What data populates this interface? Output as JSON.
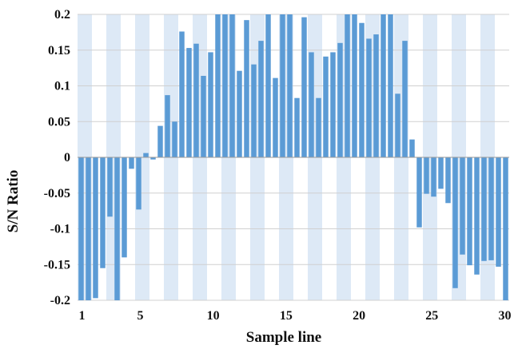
{
  "chart_data": {
    "type": "bar",
    "xlabel": "Sample line",
    "ylabel": "S/N Ratio",
    "ylim": [
      -0.2,
      0.2
    ],
    "yticks": [
      "0.2",
      "0.15",
      "0.1",
      "0.05",
      "0",
      "-0.05",
      "-0.1",
      "-0.15",
      "-0.2"
    ],
    "ytick_values": [
      0.2,
      0.15,
      0.1,
      0.05,
      0,
      -0.05,
      -0.1,
      -0.15,
      -0.2
    ],
    "xticks": [
      "1",
      "5",
      "10",
      "15",
      "20",
      "25",
      "30"
    ],
    "xtick_positions": [
      1,
      5,
      10,
      15,
      20,
      25,
      30
    ],
    "x_range": [
      0.7,
      30.3
    ],
    "grid": "horizontal",
    "bar_color": "#5b9bd5",
    "band_color": "#dde9f6",
    "values": [
      -0.2,
      -0.2,
      -0.197,
      -0.155,
      -0.083,
      -0.2,
      -0.14,
      -0.016,
      -0.073,
      0.006,
      -0.003,
      0.044,
      0.087,
      0.05,
      0.176,
      0.153,
      0.159,
      0.114,
      0.147,
      0.2,
      0.2,
      0.2,
      0.121,
      0.192,
      0.13,
      0.163,
      0.2,
      0.111,
      0.2,
      0.2,
      0.083,
      0.196,
      0.147,
      0.083,
      0.141,
      0.147,
      0.16,
      0.2,
      0.2,
      0.188,
      0.166,
      0.172,
      0.2,
      0.2,
      0.089,
      0.163,
      0.025,
      -0.098,
      -0.051,
      -0.055,
      -0.044,
      -0.064,
      -0.183,
      -0.136,
      -0.151,
      -0.164,
      -0.145,
      -0.144,
      -0.153,
      -0.2
    ]
  }
}
